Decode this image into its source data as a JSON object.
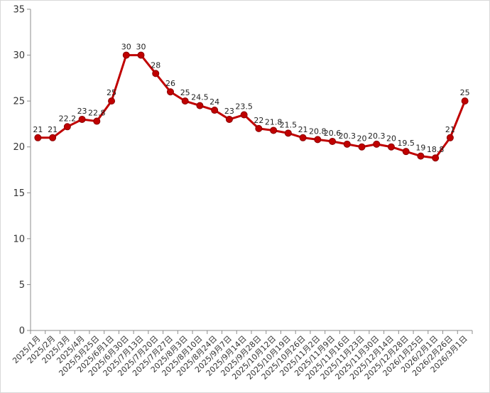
{
  "chart_data": {
    "type": "line",
    "title": "",
    "xlabel": "",
    "ylabel": "",
    "ylim": [
      0,
      35
    ],
    "yticks": [
      0,
      5,
      10,
      15,
      20,
      25,
      30,
      35
    ],
    "grid": false,
    "legend": "none",
    "categories": [
      "2025/1月",
      "2025/2月",
      "2025/3月",
      "2025/4月",
      "2025/5月25日",
      "2025/6月1日",
      "2025/6月30日",
      "2025/7月13日",
      "2025/7月20日",
      "2025/7月27日",
      "2025/8月3日",
      "2025/8月10日",
      "2025/8月24日",
      "2025/9月7日",
      "2025/9月14日",
      "2025/9月28日",
      "2025/10月12日",
      "2025/10月19日",
      "2025/10月26日",
      "2025/11月2日",
      "2025/11月9日",
      "2025/11月16日",
      "2025/11月23日",
      "2025/11月30日",
      "2025/12月14日",
      "2025/12月28日",
      "2026/1月25日",
      "2026/2月1日",
      "2026/2月26日",
      "2026/3月1日"
    ],
    "series": [
      {
        "values": [
          21,
          21,
          22.2,
          23,
          22.8,
          25,
          30,
          30,
          28,
          26,
          25,
          24.5,
          24,
          23,
          23.5,
          22,
          21.8,
          21.5,
          21,
          20.8,
          20.6,
          20.3,
          20,
          20.3,
          20,
          19.5,
          19,
          18.8,
          21,
          25
        ],
        "color": "#c00000",
        "marker_color": "#c00000"
      }
    ],
    "axis_color": "#8c8c8c"
  }
}
